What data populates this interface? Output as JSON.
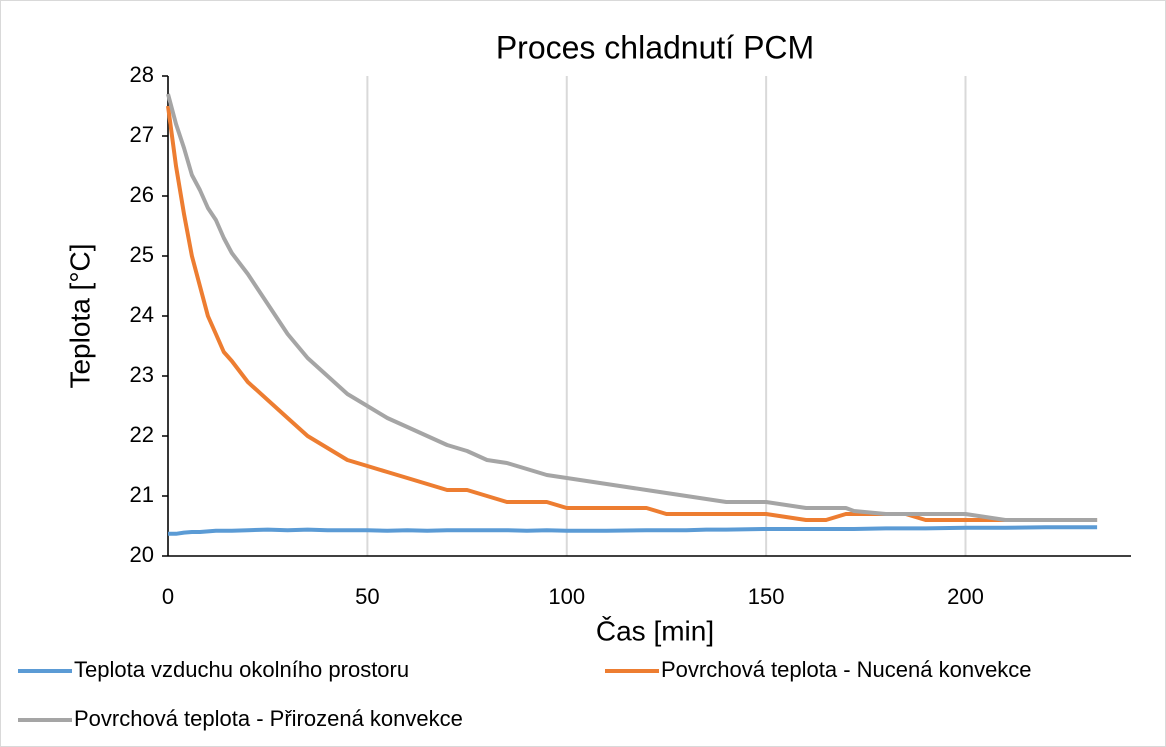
{
  "chart_data": {
    "type": "line",
    "title": "Proces chladnutí PCM",
    "x_label": "Čas [min]",
    "y_label": "Teplota [°C]",
    "x": [
      0,
      2,
      4,
      6,
      8,
      10,
      12,
      14,
      16,
      20,
      25,
      30,
      35,
      40,
      45,
      50,
      55,
      60,
      65,
      70,
      75,
      80,
      85,
      90,
      95,
      100,
      110,
      120,
      125,
      130,
      135,
      140,
      150,
      160,
      165,
      170,
      172,
      180,
      185,
      190,
      200,
      210,
      220,
      233
    ],
    "series": [
      {
        "name": "Teplota vzduchu okolního prostoru",
        "color": "#5b9bd5",
        "values": [
          20.37,
          20.37,
          20.39,
          20.4,
          20.4,
          20.41,
          20.42,
          20.42,
          20.42,
          20.43,
          20.44,
          20.43,
          20.44,
          20.43,
          20.43,
          20.43,
          20.42,
          20.43,
          20.42,
          20.43,
          20.43,
          20.43,
          20.43,
          20.42,
          20.43,
          20.42,
          20.42,
          20.43,
          20.43,
          20.43,
          20.44,
          20.44,
          20.45,
          20.45,
          20.45,
          20.45,
          20.45,
          20.46,
          20.46,
          20.46,
          20.47,
          20.47,
          20.48,
          20.48
        ]
      },
      {
        "name": "Povrchová teplota - Nucená konvekce",
        "color": "#ed7d31",
        "values": [
          27.5,
          26.5,
          25.7,
          25.0,
          24.5,
          24.0,
          23.7,
          23.4,
          23.25,
          22.9,
          22.6,
          22.3,
          22.0,
          21.8,
          21.6,
          21.5,
          21.4,
          21.3,
          21.2,
          21.1,
          21.1,
          21.0,
          20.9,
          20.9,
          20.9,
          20.8,
          20.8,
          20.8,
          20.7,
          20.7,
          20.7,
          20.7,
          20.7,
          20.6,
          20.6,
          20.7,
          20.7,
          20.7,
          20.7,
          20.6,
          20.6,
          20.6,
          20.6,
          20.6
        ]
      },
      {
        "name": "Povrchová teplota - Přirozená konvekce",
        "color": "#a5a5a5",
        "values": [
          27.7,
          27.2,
          26.8,
          26.35,
          26.1,
          25.8,
          25.6,
          25.3,
          25.05,
          24.7,
          24.2,
          23.7,
          23.3,
          23.0,
          22.7,
          22.5,
          22.3,
          22.15,
          22.0,
          21.85,
          21.75,
          21.6,
          21.55,
          21.45,
          21.35,
          21.3,
          21.2,
          21.1,
          21.05,
          21.0,
          20.95,
          20.9,
          20.9,
          20.8,
          20.8,
          20.8,
          20.75,
          20.7,
          20.7,
          20.7,
          20.7,
          20.6,
          20.6,
          20.6
        ]
      }
    ],
    "xlim": [
      0,
      241.5
    ],
    "xticks": [
      0,
      50,
      100,
      150,
      200
    ],
    "ylim": [
      20,
      28
    ],
    "yticks": [
      20,
      21,
      22,
      23,
      24,
      25,
      26,
      27,
      28
    ],
    "grid": "x",
    "legend": "bottom"
  }
}
